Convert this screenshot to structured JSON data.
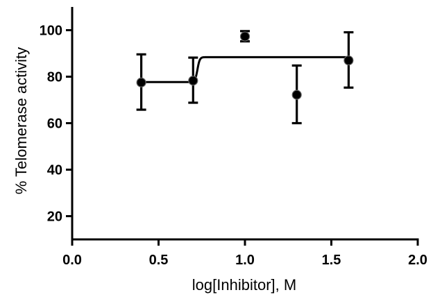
{
  "chart_data": {
    "type": "scatter",
    "xlabel": "log[Inhibitor], M",
    "ylabel": "% Telomerase activity",
    "xlim": [
      0,
      2
    ],
    "ylim": [
      10,
      110
    ],
    "xticks": [
      0.0,
      0.5,
      1.0,
      1.5,
      2.0
    ],
    "xtick_labels": [
      "0.0",
      "0.5",
      "1.0",
      "1.5",
      "2.0"
    ],
    "yticks": [
      20,
      40,
      60,
      80,
      100
    ],
    "ytick_labels": [
      "20",
      "40",
      "60",
      "80",
      "100"
    ],
    "grid": false,
    "points": [
      {
        "x": 0.4,
        "y": 77.5,
        "err_low": 65.8,
        "err_high": 89.6
      },
      {
        "x": 0.7,
        "y": 78.3,
        "err_low": 68.8,
        "err_high": 88.2
      },
      {
        "x": 1.0,
        "y": 97.3,
        "err_low": 95.2,
        "err_high": 99.6
      },
      {
        "x": 1.3,
        "y": 72.2,
        "err_low": 60.0,
        "err_high": 84.8
      },
      {
        "x": 1.6,
        "y": 87.0,
        "err_low": 75.3,
        "err_high": 99.1
      }
    ],
    "fit": {
      "type": "sigmoid",
      "bottom": 77.7,
      "top": 88.4,
      "logIC50": 0.725,
      "x_range": [
        0.4,
        1.6
      ]
    }
  }
}
